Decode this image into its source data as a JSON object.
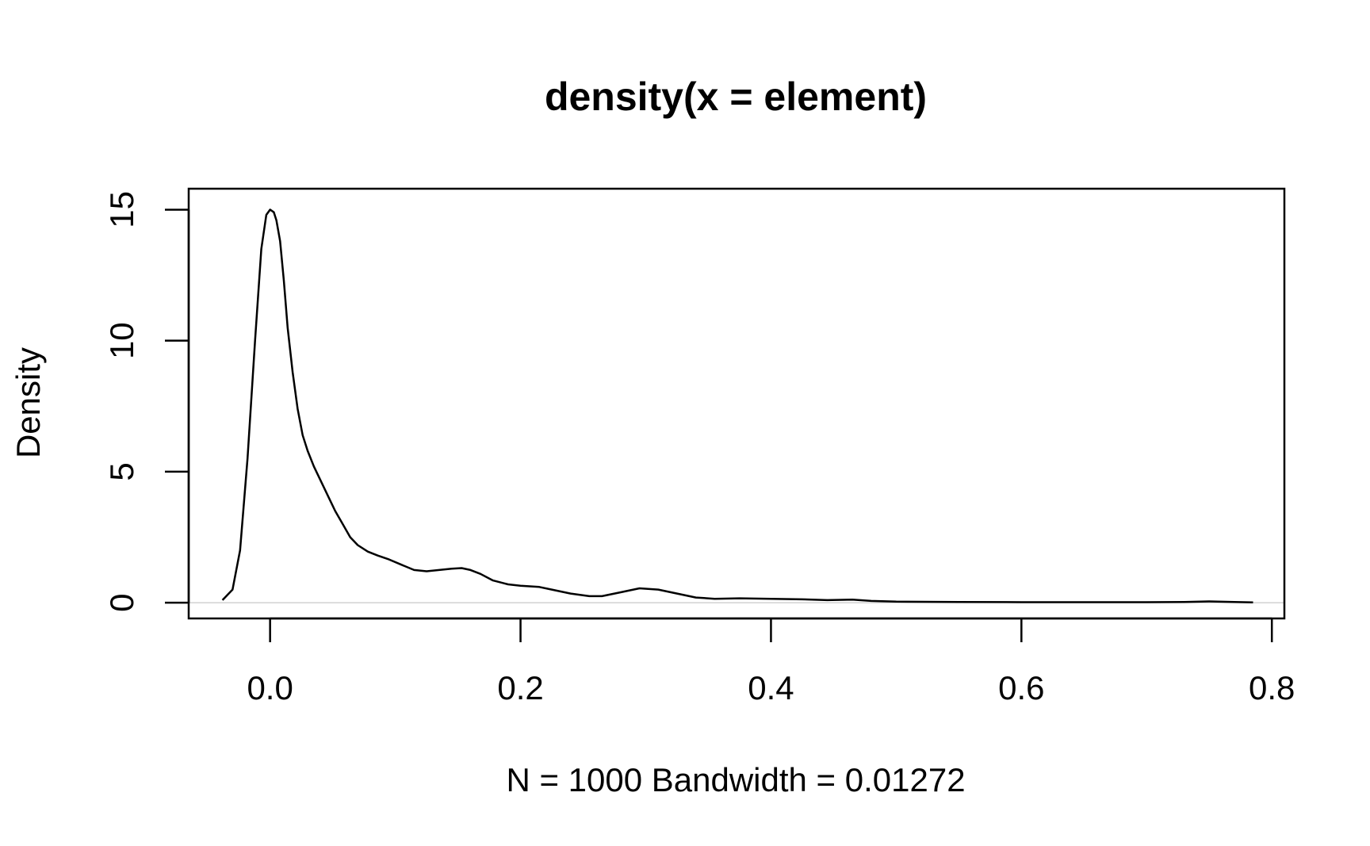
{
  "chart_data": {
    "type": "line",
    "title": "density(x = element)",
    "xlabel": "N = 1000   Bandwidth = 0.01272",
    "ylabel": "Density",
    "xlim": [
      -0.065,
      0.81
    ],
    "ylim": [
      -0.6,
      15.8
    ],
    "x_ticks": [
      0.0,
      0.2,
      0.4,
      0.6,
      0.8
    ],
    "x_tick_labels": [
      "0.0",
      "0.2",
      "0.4",
      "0.6",
      "0.8"
    ],
    "y_ticks": [
      0,
      5,
      10,
      15
    ],
    "y_tick_labels": [
      "0",
      "5",
      "10",
      "15"
    ],
    "grid": false,
    "legend": "none",
    "baseline": 0,
    "colors": {
      "line": "#000000",
      "baseline": "#bbbbbb",
      "axis": "#000000"
    },
    "series": [
      {
        "x": [
          -0.038,
          -0.03,
          -0.024,
          -0.018,
          -0.012,
          -0.007,
          -0.003,
          0.0,
          0.003,
          0.005,
          0.008,
          0.011,
          0.014,
          0.018,
          0.022,
          0.026,
          0.03,
          0.035,
          0.04,
          0.046,
          0.052,
          0.058,
          0.064,
          0.07,
          0.078,
          0.086,
          0.095,
          0.105,
          0.115,
          0.125,
          0.135,
          0.145,
          0.153,
          0.16,
          0.168,
          0.178,
          0.19,
          0.2,
          0.215,
          0.225,
          0.24,
          0.255,
          0.265,
          0.28,
          0.295,
          0.31,
          0.325,
          0.34,
          0.355,
          0.375,
          0.4,
          0.425,
          0.445,
          0.465,
          0.48,
          0.5,
          0.55,
          0.6,
          0.65,
          0.7,
          0.73,
          0.75,
          0.77,
          0.785
        ],
        "y": [
          0.1,
          0.5,
          2.0,
          5.5,
          10.0,
          13.5,
          14.8,
          15.0,
          14.9,
          14.6,
          13.8,
          12.3,
          10.5,
          8.8,
          7.4,
          6.4,
          5.8,
          5.2,
          4.7,
          4.1,
          3.5,
          3.0,
          2.5,
          2.2,
          1.95,
          1.8,
          1.65,
          1.45,
          1.25,
          1.2,
          1.25,
          1.3,
          1.32,
          1.25,
          1.1,
          0.85,
          0.7,
          0.65,
          0.6,
          0.5,
          0.35,
          0.25,
          0.25,
          0.4,
          0.55,
          0.5,
          0.35,
          0.2,
          0.15,
          0.17,
          0.15,
          0.13,
          0.1,
          0.12,
          0.07,
          0.04,
          0.03,
          0.02,
          0.02,
          0.02,
          0.03,
          0.05,
          0.03,
          0.01
        ]
      }
    ]
  }
}
